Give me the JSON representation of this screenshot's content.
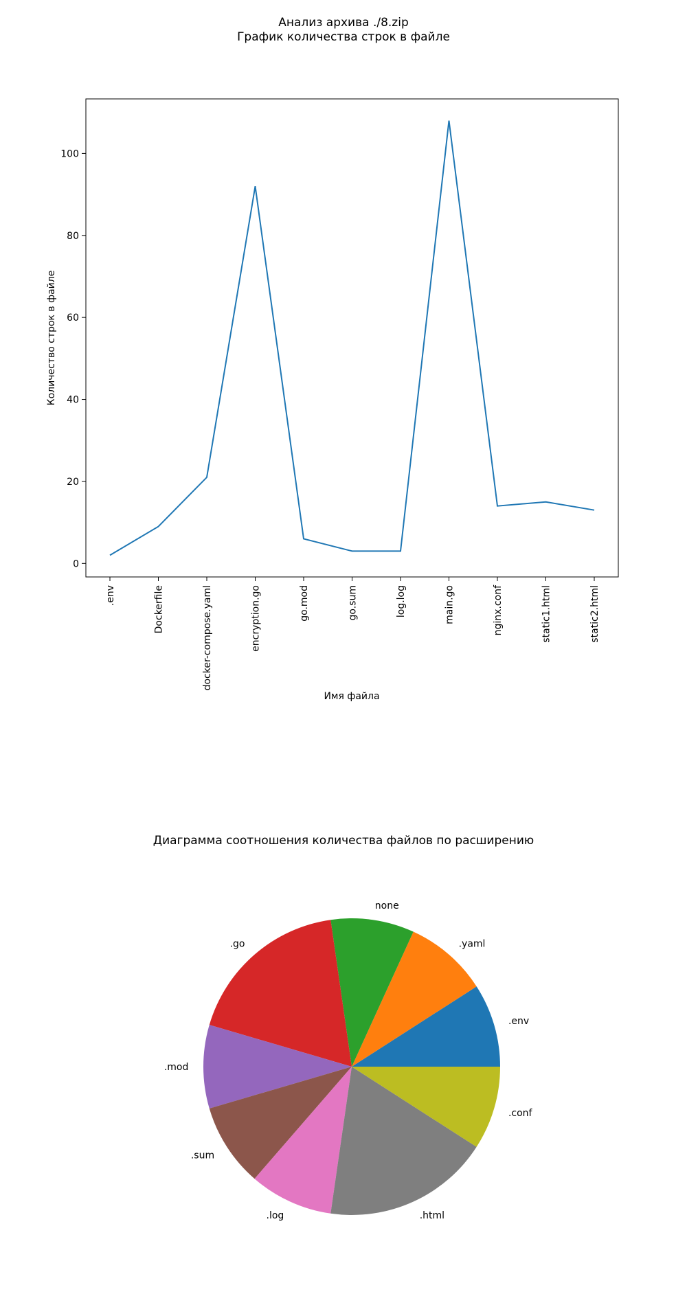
{
  "figure": {
    "title_line1": "Анализ архива ./8.zip",
    "title_line2": "График количества строк в файле"
  },
  "chart_data": [
    {
      "type": "line",
      "title": "",
      "xlabel": "Имя файла",
      "ylabel": "Количество строк в файле",
      "categories": [
        ".env",
        "Dockerfile",
        "docker-compose.yaml",
        "encryption.go",
        "go.mod",
        "go.sum",
        "log.log",
        "main.go",
        "nginx.conf",
        "static1.html",
        "static2.html"
      ],
      "series": [
        {
          "values": [
            2,
            9,
            21,
            92,
            6,
            3,
            3,
            108,
            14,
            15,
            13
          ],
          "color": "#1f77b4"
        }
      ],
      "ylim": [
        -3.3,
        113.3
      ],
      "yticks": [
        0,
        20,
        40,
        60,
        80,
        100
      ],
      "grid": false
    },
    {
      "type": "pie",
      "title": "Диаграмма соотношения количества файлов по расширению",
      "labels": [
        ".env",
        ".yaml",
        "none",
        ".go",
        ".mod",
        ".sum",
        ".log",
        ".html",
        ".conf"
      ],
      "values": [
        1,
        1,
        1,
        2,
        1,
        1,
        1,
        2,
        1
      ],
      "colors": [
        "#1f77b4",
        "#ff7f0e",
        "#2ca02c",
        "#d62728",
        "#9467bd",
        "#8c564b",
        "#e377c2",
        "#7f7f7f",
        "#bcbd22"
      ],
      "start_angle": 0,
      "direction": "counterclockwise"
    }
  ]
}
